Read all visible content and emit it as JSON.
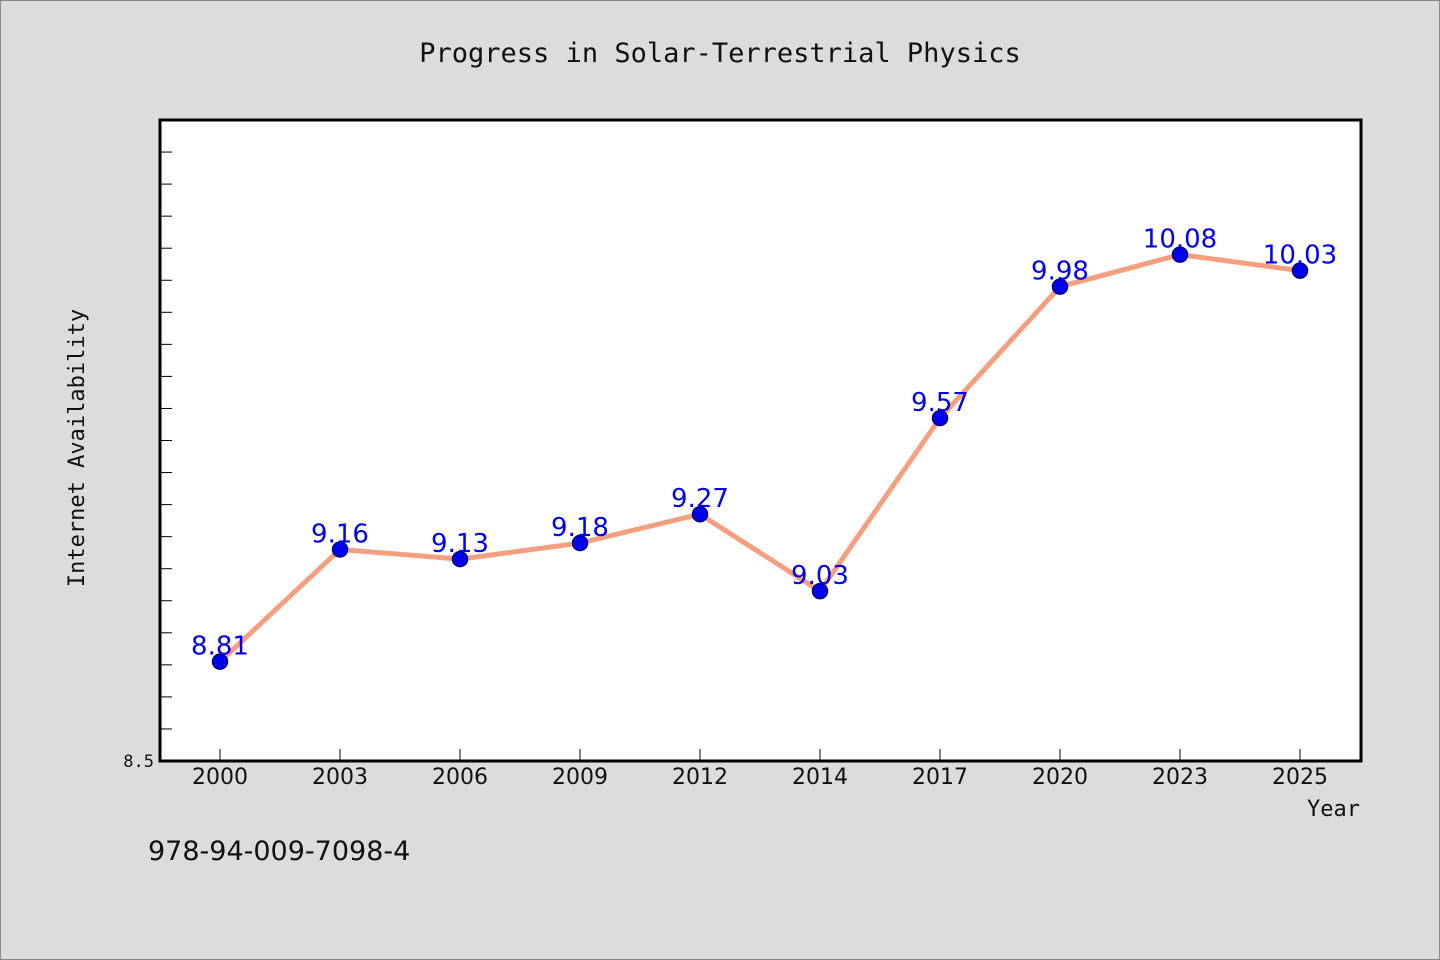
{
  "chart_data": {
    "type": "line",
    "title": "Progress in Solar-Terrestrial Physics",
    "xlabel": "Year",
    "ylabel": "Internet Availability",
    "categories": [
      "2000",
      "2003",
      "2006",
      "2009",
      "2012",
      "2014",
      "2017",
      "2020",
      "2023",
      "2025"
    ],
    "series": [
      {
        "values": [
          8.81,
          9.16,
          9.13,
          9.18,
          9.27,
          9.03,
          9.57,
          9.98,
          10.08,
          10.03
        ]
      }
    ],
    "data_labels": [
      "8.81",
      "9.16",
      "9.13",
      "9.18",
      "9.27",
      "9.03",
      "9.57",
      "9.98",
      "10.08",
      "10.03"
    ],
    "y_tick_labels": [
      "8.5"
    ],
    "ylim": [
      8.5,
      10.5
    ],
    "grid": false,
    "colors": {
      "line": "#f4a080",
      "marker": "#0000ee",
      "marker_edge": "#00007a",
      "label": "#0000ee",
      "plot_bg": "#ffffff",
      "page_bg": "#dcdcdc"
    }
  },
  "footer": {
    "isbn": "978-94-009-7098-4"
  }
}
